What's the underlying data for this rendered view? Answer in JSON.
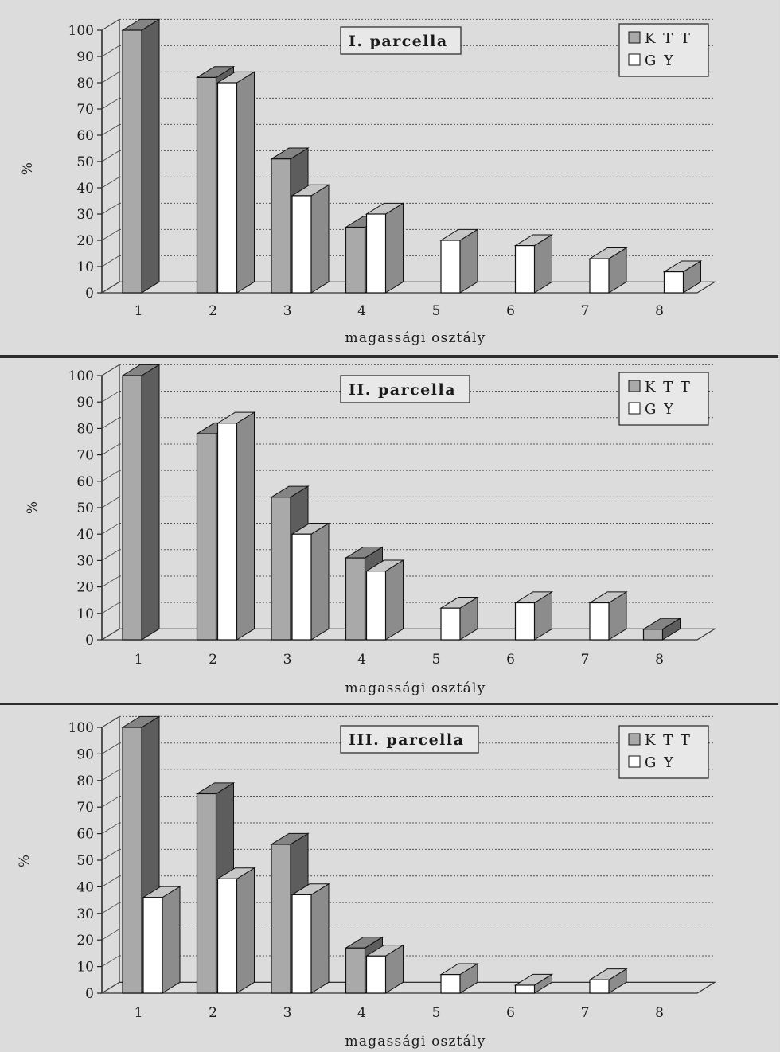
{
  "chart_data": [
    {
      "type": "bar",
      "title": "I. parcella",
      "xlabel": "magassági osztály",
      "ylabel": "%",
      "ylim": [
        0,
        100
      ],
      "yticks": [
        0,
        10,
        20,
        30,
        40,
        50,
        60,
        70,
        80,
        90,
        100
      ],
      "categories": [
        "1",
        "2",
        "3",
        "4",
        "5",
        "6",
        "7",
        "8"
      ],
      "series": [
        {
          "name": "KTT",
          "values": [
            100,
            82,
            51,
            25,
            null,
            null,
            null,
            null
          ]
        },
        {
          "name": "GY",
          "values": [
            null,
            80,
            37,
            30,
            20,
            18,
            13,
            8
          ]
        }
      ],
      "legend_position": "top-right",
      "grid": true,
      "colors": {
        "KTT": "#a9a9a9",
        "GY": "#ffffff"
      }
    },
    {
      "type": "bar",
      "title": "II. parcella",
      "xlabel": "magassági osztály",
      "ylabel": "%",
      "ylim": [
        0,
        100
      ],
      "yticks": [
        0,
        10,
        20,
        30,
        40,
        50,
        60,
        70,
        80,
        90,
        100
      ],
      "categories": [
        "1",
        "2",
        "3",
        "4",
        "5",
        "6",
        "7",
        "8"
      ],
      "series": [
        {
          "name": "KTT",
          "values": [
            100,
            78,
            54,
            31,
            null,
            null,
            null,
            4
          ]
        },
        {
          "name": "GY",
          "values": [
            null,
            82,
            40,
            26,
            12,
            14,
            14,
            null
          ]
        }
      ],
      "legend_position": "top-right",
      "grid": true,
      "colors": {
        "KTT": "#a9a9a9",
        "GY": "#ffffff"
      }
    },
    {
      "type": "bar",
      "title": "III. parcella",
      "xlabel": "magassági osztály",
      "ylabel": "%",
      "ylim": [
        0,
        100
      ],
      "yticks": [
        0,
        10,
        20,
        30,
        40,
        50,
        60,
        70,
        80,
        90,
        100
      ],
      "categories": [
        "1",
        "2",
        "3",
        "4",
        "5",
        "6",
        "7",
        "8"
      ],
      "series": [
        {
          "name": "KTT",
          "values": [
            100,
            75,
            56,
            17,
            null,
            null,
            null,
            null
          ]
        },
        {
          "name": "GY",
          "values": [
            36,
            43,
            37,
            14,
            7,
            3,
            5,
            null
          ]
        }
      ],
      "legend_position": "top-right",
      "grid": true,
      "colors": {
        "KTT": "#a9a9a9",
        "GY": "#ffffff"
      }
    }
  ]
}
